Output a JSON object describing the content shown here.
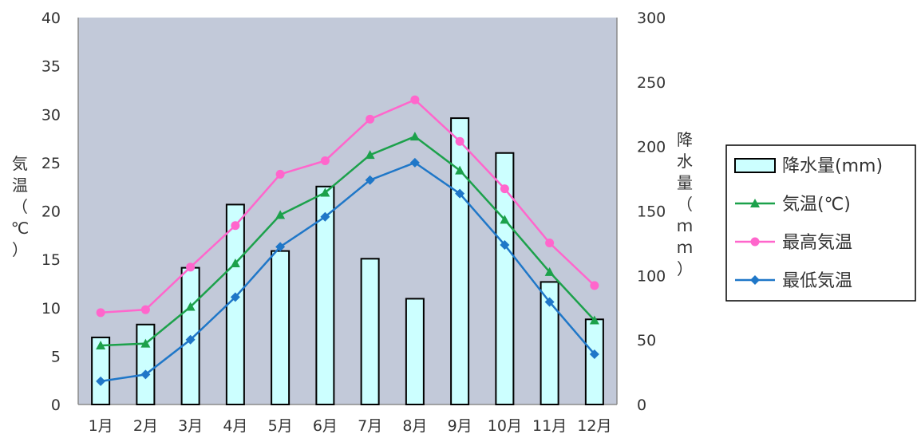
{
  "chart_data": {
    "type": "bar+line",
    "categories": [
      "1月",
      "2月",
      "3月",
      "4月",
      "5月",
      "6月",
      "7月",
      "8月",
      "9月",
      "10月",
      "11月",
      "12月"
    ],
    "y_left": {
      "label": "気温（℃）",
      "label_chars": [
        "気",
        "温",
        "（",
        "℃",
        "）"
      ],
      "range": [
        0,
        40
      ],
      "ticks": [
        "0",
        "5",
        "10",
        "15",
        "20",
        "25",
        "30",
        "35",
        "40"
      ]
    },
    "y_right": {
      "label": "降水量（ｍｍ）",
      "label_chars": [
        "降",
        "水",
        "量",
        "（",
        "ｍ",
        "ｍ",
        "）"
      ],
      "range": [
        0,
        300
      ],
      "ticks": [
        "0",
        "50",
        "100",
        "150",
        "200",
        "250",
        "300"
      ]
    },
    "series": [
      {
        "name": "降水量(mm)",
        "kind": "bar",
        "axis": "right",
        "color": "#ccffff",
        "values": [
          52,
          62,
          106,
          155,
          119,
          169,
          113,
          82,
          222,
          195,
          95,
          66
        ]
      },
      {
        "name": "気温(℃)",
        "kind": "line",
        "axis": "left",
        "marker": "triangle",
        "color": "#1ca14b",
        "values": [
          6.1,
          6.3,
          10.1,
          14.6,
          19.6,
          21.9,
          25.8,
          27.7,
          24.2,
          19.1,
          13.7,
          8.7
        ]
      },
      {
        "name": "最高気温",
        "kind": "line",
        "axis": "left",
        "marker": "circle",
        "color": "#ff66cc",
        "values": [
          9.5,
          9.8,
          14.2,
          18.5,
          23.8,
          25.2,
          29.5,
          31.5,
          27.2,
          22.3,
          16.7,
          12.3
        ]
      },
      {
        "name": "最低気温",
        "kind": "line",
        "axis": "left",
        "marker": "diamond",
        "color": "#1f77c8",
        "values": [
          2.4,
          3.1,
          6.7,
          11.1,
          16.3,
          19.4,
          23.2,
          25.0,
          21.8,
          16.5,
          10.6,
          5.2
        ]
      }
    ],
    "legend": {
      "position": "right"
    },
    "grid": false,
    "plot_background": "#c2c9d9"
  }
}
